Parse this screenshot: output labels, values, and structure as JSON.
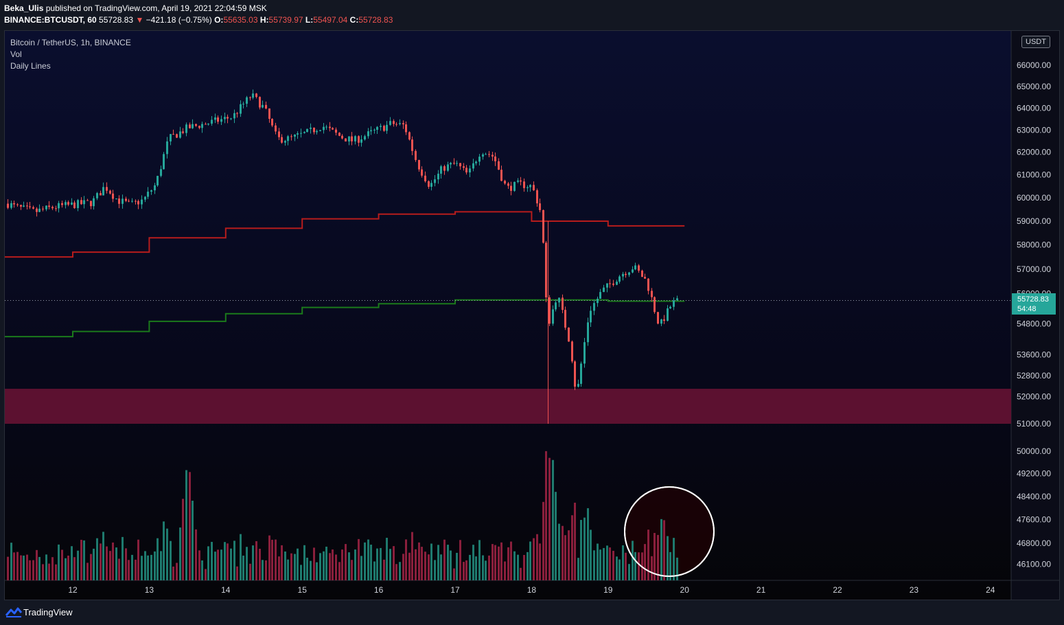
{
  "header": {
    "author": "Beka_Ulis",
    "published_text": "published on TradingView.com, April 19, 2021 22:04:59 MSK",
    "symbol": "BINANCE:BTCUSDT, 60",
    "last": "55728.83",
    "change": "−421.18 (−0.75%)",
    "open_label": "O:",
    "open": "55635.03",
    "high_label": "H:",
    "high": "55739.97",
    "low_label": "L:",
    "low": "55497.04",
    "close_label": "C:",
    "close": "55728.83"
  },
  "legend": {
    "title": "Bitcoin / TetherUS, 1h, BINANCE",
    "vol": "Vol",
    "indicator": "Daily Lines"
  },
  "currency": "USDT",
  "price_tag": {
    "price": "55728.83",
    "countdown": "54:48"
  },
  "footer": {
    "brand": "TradingView"
  },
  "colors": {
    "up": "#26a69a",
    "down": "#ef5350",
    "vol_up": "#1e7a6e",
    "vol_down": "#8a1f3c",
    "zone": "#5c1130",
    "resistance_line": "#b71c1c",
    "support_line": "#1b7a1b"
  },
  "chart_data": {
    "type": "candlestick",
    "symbol": "BTCUSDT",
    "timeframe": "1h",
    "y_axis": {
      "ticks": [
        "66000.00",
        "65000.00",
        "64000.00",
        "63000.00",
        "62000.00",
        "61000.00",
        "60000.00",
        "59000.00",
        "58000.00",
        "57000.00",
        "56000.00",
        "54800.00",
        "53600.00",
        "52800.00",
        "52000.00",
        "51000.00",
        "50000.00",
        "49200.00",
        "48400.00",
        "47600.00",
        "46800.00",
        "46100.00"
      ],
      "scale": "log",
      "range": [
        45800,
        67000
      ]
    },
    "x_axis": {
      "ticks": [
        "12",
        "13",
        "14",
        "15",
        "16",
        "17",
        "18",
        "19",
        "20",
        "21",
        "22",
        "23",
        "24"
      ]
    },
    "last_price": 55728.83,
    "zone": {
      "low": 51000,
      "high": 52300
    },
    "daily_high_line": [
      {
        "day": "11",
        "value": 57500
      },
      {
        "day": "12",
        "value": 57700
      },
      {
        "day": "13",
        "value": 58300
      },
      {
        "day": "14",
        "value": 58700
      },
      {
        "day": "15",
        "value": 59100
      },
      {
        "day": "16",
        "value": 59300
      },
      {
        "day": "17",
        "value": 59400
      },
      {
        "day": "18",
        "value": 59000
      },
      {
        "day": "19",
        "value": 58800
      }
    ],
    "daily_low_line": [
      {
        "day": "11",
        "value": 54300
      },
      {
        "day": "12",
        "value": 54500
      },
      {
        "day": "13",
        "value": 54900
      },
      {
        "day": "14",
        "value": 55200
      },
      {
        "day": "15",
        "value": 55450
      },
      {
        "day": "16",
        "value": 55600
      },
      {
        "day": "17",
        "value": 55750
      },
      {
        "day": "18",
        "value": 55750
      },
      {
        "day": "19",
        "value": 55700
      }
    ],
    "price_path": [
      {
        "t": "11 01:00",
        "p": 59900
      },
      {
        "t": "11 06:00",
        "p": 59600
      },
      {
        "t": "11 12:00",
        "p": 59400
      },
      {
        "t": "11 18:00",
        "p": 59600
      },
      {
        "t": "12 00:00",
        "p": 59700
      },
      {
        "t": "12 06:00",
        "p": 59800
      },
      {
        "t": "12 10:00",
        "p": 60500
      },
      {
        "t": "12 14:00",
        "p": 59900
      },
      {
        "t": "12 18:00",
        "p": 59700
      },
      {
        "t": "12 22:00",
        "p": 59900
      },
      {
        "t": "13 02:00",
        "p": 60600
      },
      {
        "t": "13 06:00",
        "p": 62600
      },
      {
        "t": "13 12:00",
        "p": 63100
      },
      {
        "t": "13 18:00",
        "p": 63300
      },
      {
        "t": "14 02:00",
        "p": 63600
      },
      {
        "t": "14 08:00",
        "p": 64600
      },
      {
        "t": "14 12:00",
        "p": 64000
      },
      {
        "t": "14 16:00",
        "p": 62600
      },
      {
        "t": "14 20:00",
        "p": 62600
      },
      {
        "t": "15 02:00",
        "p": 62900
      },
      {
        "t": "15 06:00",
        "p": 63200
      },
      {
        "t": "15 12:00",
        "p": 62700
      },
      {
        "t": "15 16:00",
        "p": 62500
      },
      {
        "t": "15 22:00",
        "p": 62900
      },
      {
        "t": "16 04:00",
        "p": 63300
      },
      {
        "t": "16 08:00",
        "p": 63200
      },
      {
        "t": "16 12:00",
        "p": 61500
      },
      {
        "t": "16 16:00",
        "p": 60500
      },
      {
        "t": "16 20:00",
        "p": 61300
      },
      {
        "t": "17 00:00",
        "p": 61500
      },
      {
        "t": "17 04:00",
        "p": 61000
      },
      {
        "t": "17 08:00",
        "p": 62100
      },
      {
        "t": "17 12:00",
        "p": 61800
      },
      {
        "t": "17 16:00",
        "p": 60400
      },
      {
        "t": "17 20:00",
        "p": 60600
      },
      {
        "t": "18 00:00",
        "p": 60500
      },
      {
        "t": "18 03:00",
        "p": 59300
      },
      {
        "t": "18 05:00",
        "p": 54700
      },
      {
        "t": "18 08:00",
        "p": 56000
      },
      {
        "t": "18 12:00",
        "p": 54000
      },
      {
        "t": "18 14:00",
        "p": 52000
      },
      {
        "t": "18 18:00",
        "p": 55300
      },
      {
        "t": "18 22:00",
        "p": 56100
      },
      {
        "t": "19 04:00",
        "p": 56800
      },
      {
        "t": "19 08:00",
        "p": 57100
      },
      {
        "t": "19 12:00",
        "p": 56500
      },
      {
        "t": "19 16:00",
        "p": 54700
      },
      {
        "t": "19 20:00",
        "p": 55600
      },
      {
        "t": "19 22:00",
        "p": 55728.83
      }
    ],
    "volume_spikes": [
      {
        "t": "13 12:00",
        "relative": 0.9,
        "dir": "up"
      },
      {
        "t": "18 06:00",
        "relative": 1.0,
        "dir": "down"
      },
      {
        "t": "19 17:00",
        "relative": 0.5,
        "dir": "down"
      }
    ]
  }
}
